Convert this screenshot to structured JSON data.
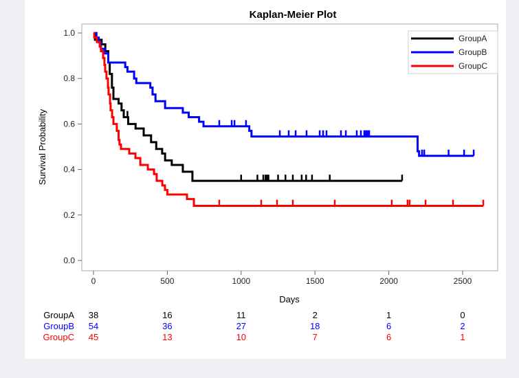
{
  "chart_data": {
    "type": "line",
    "title": "Kaplan-Meier Plot",
    "xlabel": "Days",
    "ylabel": "Survival Probability",
    "xlim": [
      -80,
      2700
    ],
    "ylim": [
      -0.03,
      1.03
    ],
    "xticks": [
      0,
      500,
      1000,
      1500,
      2000,
      2500
    ],
    "yticks": [
      0.0,
      0.2,
      0.4,
      0.6,
      0.8,
      1.0
    ],
    "ytick_labels": [
      "0.0",
      "0.2",
      "0.4",
      "0.6",
      "0.8",
      "1.0"
    ],
    "grid": false,
    "legend_placement": "top-right",
    "series": [
      {
        "name": "GroupA",
        "color": "#000000",
        "steps": [
          [
            0,
            1.0
          ],
          [
            10,
            0.97
          ],
          [
            55,
            0.95
          ],
          [
            80,
            0.92
          ],
          [
            100,
            0.87
          ],
          [
            110,
            0.82
          ],
          [
            125,
            0.76
          ],
          [
            135,
            0.71
          ],
          [
            170,
            0.69
          ],
          [
            190,
            0.66
          ],
          [
            205,
            0.63
          ],
          [
            235,
            0.6
          ],
          [
            285,
            0.58
          ],
          [
            340,
            0.55
          ],
          [
            390,
            0.52
          ],
          [
            425,
            0.49
          ],
          [
            465,
            0.47
          ],
          [
            485,
            0.44
          ],
          [
            530,
            0.42
          ],
          [
            605,
            0.39
          ],
          [
            670,
            0.35
          ]
        ],
        "end": 2090,
        "censored": [
          230,
          1000,
          1110,
          1150,
          1165,
          1175,
          1185,
          1250,
          1300,
          1350,
          1410,
          1440,
          1480,
          1600,
          2090
        ]
      },
      {
        "name": "GroupB",
        "color": "#0000ff",
        "steps": [
          [
            0,
            1.0
          ],
          [
            20,
            0.98
          ],
          [
            35,
            0.96
          ],
          [
            50,
            0.93
          ],
          [
            75,
            0.91
          ],
          [
            100,
            0.87
          ],
          [
            215,
            0.85
          ],
          [
            230,
            0.83
          ],
          [
            275,
            0.8
          ],
          [
            290,
            0.78
          ],
          [
            385,
            0.76
          ],
          [
            400,
            0.73
          ],
          [
            420,
            0.7
          ],
          [
            485,
            0.67
          ],
          [
            605,
            0.65
          ],
          [
            645,
            0.63
          ],
          [
            715,
            0.61
          ],
          [
            745,
            0.59
          ],
          [
            1055,
            0.57
          ],
          [
            1070,
            0.545
          ],
          [
            2195,
            0.48
          ],
          [
            2205,
            0.46
          ]
        ],
        "end": 2575,
        "censored": [
          852,
          936,
          955,
          1033,
          1262,
          1322,
          1369,
          1443,
          1532,
          1555,
          1578,
          1676,
          1709,
          1783,
          1811,
          1834,
          1845,
          1856,
          1867,
          2225,
          2240,
          2405,
          2510,
          2575
        ]
      },
      {
        "name": "GroupC",
        "color": "#ff0000",
        "steps": [
          [
            0,
            1.0
          ],
          [
            5,
            0.98
          ],
          [
            23,
            0.96
          ],
          [
            42,
            0.94
          ],
          [
            51,
            0.92
          ],
          [
            65,
            0.89
          ],
          [
            74,
            0.86
          ],
          [
            79,
            0.83
          ],
          [
            88,
            0.8
          ],
          [
            98,
            0.76
          ],
          [
            102,
            0.73
          ],
          [
            112,
            0.69
          ],
          [
            116,
            0.66
          ],
          [
            126,
            0.63
          ],
          [
            135,
            0.6
          ],
          [
            158,
            0.57
          ],
          [
            170,
            0.53
          ],
          [
            176,
            0.51
          ],
          [
            186,
            0.49
          ],
          [
            242,
            0.47
          ],
          [
            284,
            0.45
          ],
          [
            317,
            0.42
          ],
          [
            368,
            0.4
          ],
          [
            410,
            0.38
          ],
          [
            428,
            0.35
          ],
          [
            466,
            0.33
          ],
          [
            484,
            0.31
          ],
          [
            500,
            0.29
          ],
          [
            633,
            0.27
          ],
          [
            680,
            0.24
          ]
        ],
        "end": 2640,
        "censored": [
          852,
          1136,
          1243,
          1350,
          1634,
          2020,
          2127,
          2141,
          2249,
          2435,
          2640
        ]
      }
    ],
    "at_risk": {
      "times": [
        0,
        500,
        1000,
        1500,
        2000,
        2500
      ],
      "rows": [
        {
          "name": "GroupA",
          "color": "#000000",
          "values": [
            "38",
            "16",
            "11",
            "2",
            "1",
            "0"
          ]
        },
        {
          "name": "GroupB",
          "color": "#0000ff",
          "values": [
            "54",
            "36",
            "27",
            "18",
            "6",
            "2"
          ]
        },
        {
          "name": "GroupC",
          "color": "#ff0000",
          "values": [
            "45",
            "13",
            "10",
            "7",
            "6",
            "1"
          ]
        }
      ]
    }
  }
}
